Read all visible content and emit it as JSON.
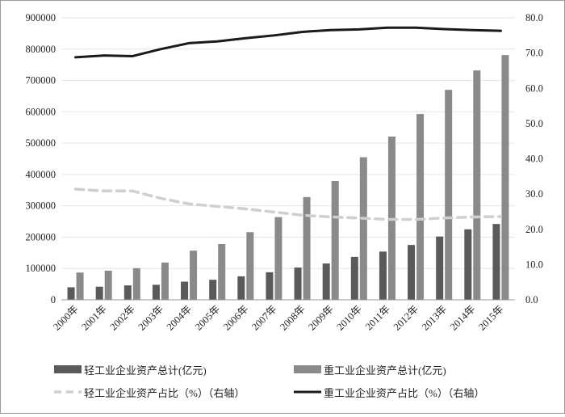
{
  "chart_data": {
    "type": "bar",
    "categories": [
      "2000年",
      "2001年",
      "2002年",
      "2003年",
      "2004年",
      "2005年",
      "2006年",
      "2007年",
      "2008年",
      "2009年",
      "2010年",
      "2011年",
      "2012年",
      "2013年",
      "2014年",
      "2015年"
    ],
    "series": [
      {
        "name": "轻工业企业资产总计(亿元)",
        "kind": "bar",
        "axis": "left",
        "color": "#5a5a5a",
        "values": [
          40000,
          42000,
          46000,
          48000,
          58000,
          64000,
          75000,
          88000,
          103000,
          116000,
          137000,
          154000,
          175000,
          202000,
          225000,
          242000
        ]
      },
      {
        "name": "重工业企业资产总计(亿元)",
        "kind": "bar",
        "axis": "left",
        "color": "#8a8a8a",
        "values": [
          87000,
          93000,
          101000,
          119000,
          157000,
          178000,
          216000,
          264000,
          328000,
          379000,
          455000,
          521000,
          593000,
          670000,
          732000,
          781000
        ]
      },
      {
        "name": "轻工业企业资产占比（%）（右轴）",
        "kind": "line",
        "style": "dashed",
        "axis": "right",
        "color": "#cfcfcf",
        "values": [
          31.4,
          30.9,
          30.9,
          28.8,
          27.2,
          26.5,
          25.8,
          24.9,
          24.0,
          23.5,
          23.2,
          22.8,
          22.8,
          23.2,
          23.5,
          23.6
        ]
      },
      {
        "name": "重工业企业资产占比（%）（右轴）",
        "kind": "line",
        "style": "solid",
        "axis": "right",
        "color": "#1a1a1a",
        "values": [
          68.8,
          69.3,
          69.1,
          71.1,
          72.8,
          73.3,
          74.2,
          75.0,
          76.0,
          76.5,
          76.7,
          77.2,
          77.2,
          76.8,
          76.5,
          76.3
        ]
      }
    ],
    "y_left": {
      "min": 0,
      "max": 900000,
      "step": 100000,
      "ticks": [
        "0",
        "100000",
        "200000",
        "300000",
        "400000",
        "500000",
        "600000",
        "700000",
        "800000",
        "900000"
      ]
    },
    "y_right": {
      "min": 0,
      "max": 80,
      "step": 10,
      "ticks": [
        "0.0",
        "10.0",
        "20.0",
        "30.0",
        "40.0",
        "50.0",
        "60.0",
        "70.0",
        "80.0"
      ]
    },
    "grid": true,
    "legend_position": "bottom",
    "title": "",
    "xlabel": "",
    "ylabel": ""
  }
}
